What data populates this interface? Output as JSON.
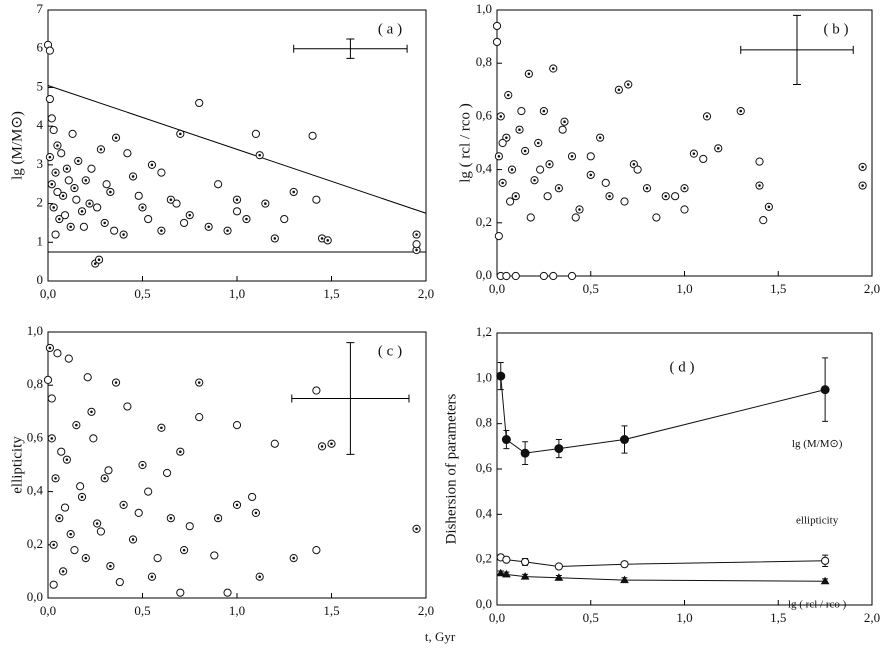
{
  "x_label": "t, Gyr",
  "chart_data": [
    {
      "type": "scatter",
      "panel_label": "( a )",
      "y_label": "lg (M/M⊙)",
      "xlim": [
        0,
        2
      ],
      "ylim": [
        0,
        7
      ],
      "xticks": [
        {
          "value": 0,
          "label": "0,0"
        },
        {
          "value": 0.5,
          "label": "0,5"
        },
        {
          "value": 1,
          "label": "1,0"
        },
        {
          "value": 1.5,
          "label": "1,5"
        },
        {
          "value": 2,
          "label": "2,0"
        }
      ],
      "yticks": [
        0,
        1,
        2,
        3,
        4,
        5,
        6,
        7
      ],
      "series": [
        {
          "marker": "dotted",
          "x": [
            0.01,
            0.02,
            0.03,
            0.04,
            0.05,
            0.06,
            0.08,
            0.1,
            0.12,
            0.14,
            0.16,
            0.18,
            0.2,
            0.22,
            0.25,
            0.27,
            0.28,
            0.3,
            0.33,
            0.36,
            0.4,
            0.45,
            0.5,
            0.55,
            0.6,
            0.65,
            0.7,
            0.75,
            0.85,
            0.95,
            1.0,
            1.05,
            1.12,
            1.15,
            1.2,
            1.3,
            1.45,
            1.48,
            1.95,
            1.95
          ],
          "y": [
            3.2,
            2.5,
            1.9,
            2.8,
            3.5,
            1.6,
            2.2,
            2.9,
            1.4,
            2.4,
            3.1,
            1.8,
            2.6,
            2.0,
            0.45,
            0.55,
            3.4,
            1.5,
            2.3,
            3.7,
            1.2,
            2.7,
            1.9,
            3.0,
            1.3,
            2.1,
            3.8,
            1.7,
            1.4,
            1.3,
            2.1,
            1.6,
            3.25,
            2.0,
            1.1,
            2.3,
            1.1,
            1.05,
            1.2,
            0.8
          ]
        },
        {
          "marker": "open",
          "x": [
            0.0,
            0.01,
            0.01,
            0.02,
            0.03,
            0.04,
            0.05,
            0.07,
            0.09,
            0.11,
            0.13,
            0.15,
            0.19,
            0.23,
            0.26,
            0.31,
            0.35,
            0.42,
            0.48,
            0.53,
            0.6,
            0.68,
            0.72,
            0.8,
            0.9,
            1.0,
            1.1,
            1.25,
            1.4,
            1.42,
            1.95
          ],
          "y": [
            6.1,
            5.95,
            4.7,
            4.2,
            3.9,
            1.2,
            2.3,
            3.3,
            1.7,
            2.6,
            3.8,
            2.1,
            1.4,
            2.9,
            1.9,
            2.5,
            1.3,
            3.3,
            2.2,
            1.6,
            2.8,
            2.0,
            1.5,
            4.6,
            2.5,
            1.8,
            3.8,
            1.6,
            3.75,
            2.1,
            0.95
          ]
        }
      ],
      "lines": [
        {
          "x": [
            0,
            2
          ],
          "y": [
            5.05,
            1.75
          ]
        },
        {
          "x": [
            0,
            2
          ],
          "y": [
            0.75,
            0.75
          ]
        }
      ],
      "error_cross": {
        "x": 1.6,
        "y": 6.0,
        "xerr": 0.3,
        "yerr": 0.25
      }
    },
    {
      "type": "scatter",
      "panel_label": "( b )",
      "y_label": "lg ( rcl / rco )",
      "xlim": [
        0,
        2
      ],
      "ylim": [
        0,
        1
      ],
      "xticks": [
        {
          "value": 0,
          "label": "0,0"
        },
        {
          "value": 0.5,
          "label": "0,5"
        },
        {
          "value": 1,
          "label": "1,0"
        },
        {
          "value": 1.5,
          "label": "1,5"
        },
        {
          "value": 2,
          "label": "2,0"
        }
      ],
      "yticks": [
        {
          "value": 0,
          "label": "0,0"
        },
        {
          "value": 0.2,
          "label": "0,2"
        },
        {
          "value": 0.4,
          "label": "0,4"
        },
        {
          "value": 0.6,
          "label": "0,6"
        },
        {
          "value": 0.8,
          "label": "0,8"
        },
        {
          "value": 1,
          "label": "1,0"
        }
      ],
      "series": [
        {
          "marker": "dotted",
          "x": [
            0.01,
            0.02,
            0.03,
            0.05,
            0.06,
            0.08,
            0.1,
            0.12,
            0.15,
            0.17,
            0.2,
            0.22,
            0.25,
            0.28,
            0.3,
            0.33,
            0.36,
            0.4,
            0.44,
            0.5,
            0.55,
            0.6,
            0.65,
            0.7,
            0.73,
            0.8,
            0.9,
            1.0,
            1.05,
            1.12,
            1.18,
            1.3,
            1.4,
            1.45,
            1.95,
            1.95
          ],
          "y": [
            0.45,
            0.6,
            0.35,
            0.52,
            0.68,
            0.4,
            0.3,
            0.55,
            0.47,
            0.76,
            0.36,
            0.5,
            0.62,
            0.42,
            0.78,
            0.33,
            0.58,
            0.45,
            0.25,
            0.38,
            0.52,
            0.3,
            0.7,
            0.72,
            0.42,
            0.33,
            0.3,
            0.33,
            0.46,
            0.6,
            0.48,
            0.62,
            0.34,
            0.26,
            0.41,
            0.34
          ]
        },
        {
          "marker": "open",
          "x": [
            0.0,
            0.0,
            0.02,
            0.05,
            0.1,
            0.25,
            0.3,
            0.4,
            0.01,
            0.03,
            0.07,
            0.13,
            0.18,
            0.23,
            0.27,
            0.35,
            0.42,
            0.5,
            0.58,
            0.68,
            0.75,
            0.85,
            0.95,
            1.0,
            1.1,
            1.4,
            1.42
          ],
          "y": [
            0.94,
            0.88,
            0.0,
            0.0,
            0.0,
            0.0,
            0.0,
            0.0,
            0.15,
            0.5,
            0.28,
            0.62,
            0.22,
            0.4,
            0.3,
            0.55,
            0.22,
            0.45,
            0.35,
            0.28,
            0.4,
            0.22,
            0.3,
            0.25,
            0.44,
            0.43,
            0.21
          ]
        }
      ],
      "error_cross": {
        "x": 1.6,
        "y": 0.85,
        "xerr": 0.3,
        "yerr": 0.13
      }
    },
    {
      "type": "scatter",
      "panel_label": "( c )",
      "y_label": "ellipticity",
      "xlim": [
        0,
        2
      ],
      "ylim": [
        0,
        1
      ],
      "xticks": [
        {
          "value": 0,
          "label": "0,0"
        },
        {
          "value": 0.5,
          "label": "0,5"
        },
        {
          "value": 1,
          "label": "1,0"
        },
        {
          "value": 1.5,
          "label": "1,5"
        },
        {
          "value": 2,
          "label": "2,0"
        }
      ],
      "yticks": [
        {
          "value": 0,
          "label": "0,0"
        },
        {
          "value": 0.2,
          "label": "0,2"
        },
        {
          "value": 0.4,
          "label": "0,4"
        },
        {
          "value": 0.6,
          "label": "0,6"
        },
        {
          "value": 0.8,
          "label": "0,8"
        },
        {
          "value": 1,
          "label": "1,0"
        }
      ],
      "series": [
        {
          "marker": "dotted",
          "x": [
            0.01,
            0.02,
            0.03,
            0.04,
            0.06,
            0.08,
            0.1,
            0.12,
            0.15,
            0.18,
            0.2,
            0.23,
            0.26,
            0.3,
            0.33,
            0.36,
            0.4,
            0.45,
            0.5,
            0.55,
            0.6,
            0.65,
            0.7,
            0.72,
            0.8,
            0.9,
            1.0,
            1.1,
            1.12,
            1.3,
            1.45,
            1.5,
            1.95
          ],
          "y": [
            0.94,
            0.6,
            0.2,
            0.45,
            0.3,
            0.1,
            0.52,
            0.24,
            0.65,
            0.38,
            0.15,
            0.7,
            0.28,
            0.45,
            0.12,
            0.81,
            0.35,
            0.22,
            0.5,
            0.08,
            0.64,
            0.3,
            0.55,
            0.18,
            0.81,
            0.3,
            0.35,
            0.32,
            0.08,
            0.15,
            0.57,
            0.58,
            0.26
          ]
        },
        {
          "marker": "open",
          "x": [
            0.0,
            0.02,
            0.03,
            0.05,
            0.07,
            0.09,
            0.11,
            0.14,
            0.17,
            0.21,
            0.24,
            0.28,
            0.32,
            0.38,
            0.42,
            0.48,
            0.53,
            0.58,
            0.63,
            0.7,
            0.75,
            0.8,
            0.88,
            0.95,
            1.0,
            1.08,
            1.2,
            1.42,
            1.42
          ],
          "y": [
            0.82,
            0.75,
            0.05,
            0.92,
            0.55,
            0.34,
            0.9,
            0.18,
            0.42,
            0.83,
            0.6,
            0.25,
            0.48,
            0.06,
            0.72,
            0.32,
            0.4,
            0.15,
            0.47,
            0.02,
            0.27,
            0.68,
            0.16,
            0.02,
            0.65,
            0.38,
            0.58,
            0.78,
            0.18
          ]
        }
      ],
      "error_cross": {
        "x": 1.6,
        "y": 0.75,
        "xerr": 0.31,
        "yerr": 0.21
      }
    },
    {
      "type": "line",
      "panel_label": "( d )",
      "y_label": "Dishersion of parameters",
      "xlim": [
        0,
        2
      ],
      "ylim": [
        0,
        1.2
      ],
      "xticks": [
        {
          "value": 0,
          "label": "0,0"
        },
        {
          "value": 0.5,
          "label": "0,5"
        },
        {
          "value": 1,
          "label": "1,0"
        },
        {
          "value": 1.5,
          "label": "1,5"
        },
        {
          "value": 2,
          "label": "2,0"
        }
      ],
      "yticks": [
        {
          "value": 0,
          "label": "0,0"
        },
        {
          "value": 0.2,
          "label": "0,2"
        },
        {
          "value": 0.4,
          "label": "0,4"
        },
        {
          "value": 0.6,
          "label": "0,6"
        },
        {
          "value": 0.8,
          "label": "0,8"
        },
        {
          "value": 1,
          "label": "1,0"
        },
        {
          "value": 1.2,
          "label": "1,2"
        }
      ],
      "series": [
        {
          "name": "lg (M/M⊙)",
          "marker": "filled",
          "x": [
            0.02,
            0.05,
            0.15,
            0.33,
            0.68,
            1.75
          ],
          "y": [
            1.01,
            0.73,
            0.67,
            0.69,
            0.73,
            0.95
          ],
          "err": [
            0.06,
            0.04,
            0.05,
            0.04,
            0.06,
            0.14
          ]
        },
        {
          "name": "ellipticity",
          "marker": "open",
          "x": [
            0.02,
            0.05,
            0.15,
            0.33,
            0.68,
            1.75
          ],
          "y": [
            0.21,
            0.2,
            0.19,
            0.17,
            0.18,
            0.195
          ],
          "err": [
            0.01,
            0.01,
            0.015,
            0.01,
            0.01,
            0.025
          ]
        },
        {
          "name": "lg ( rcl / rco )",
          "marker": "triangle",
          "x": [
            0.02,
            0.05,
            0.15,
            0.33,
            0.68,
            1.75
          ],
          "y": [
            0.14,
            0.135,
            0.125,
            0.12,
            0.11,
            0.105
          ],
          "err": [
            0.01,
            0.01,
            0.01,
            0.01,
            0.01,
            0.01
          ]
        }
      ]
    }
  ]
}
